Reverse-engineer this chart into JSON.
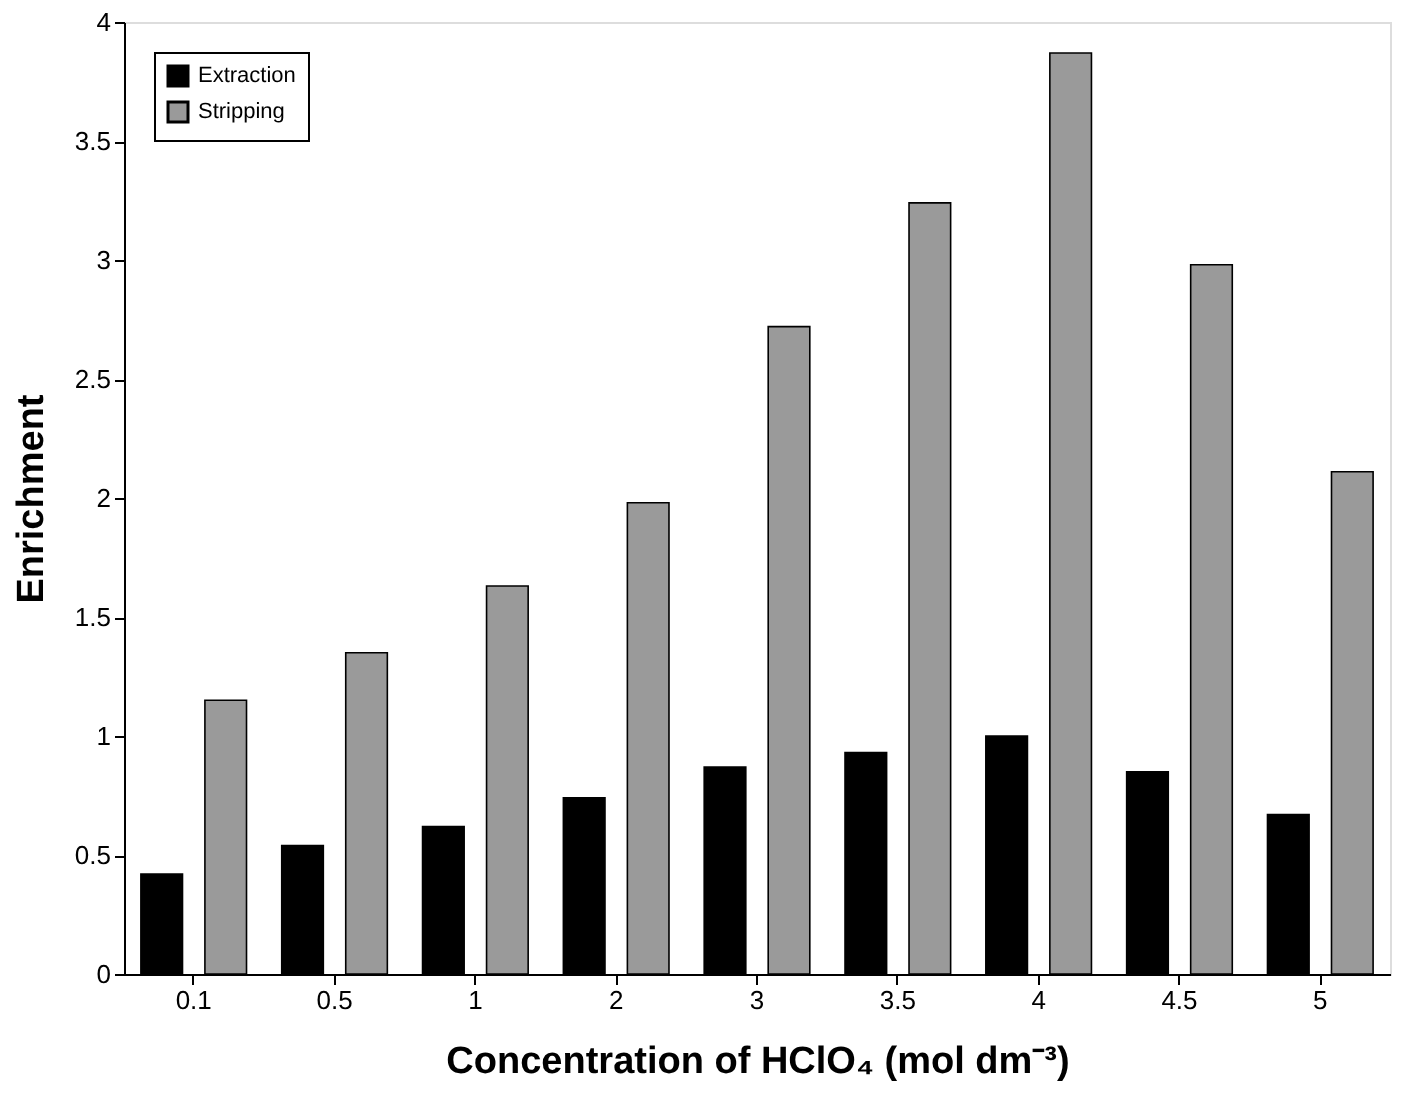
{
  "chart_data": {
    "type": "bar",
    "xlabel": "Concentration of HClO₄ (mol dm⁻³)",
    "ylabel": "Enrichment",
    "categories": [
      "0.1",
      "0.5",
      "1",
      "2",
      "3",
      "3.5",
      "4",
      "4.5",
      "5"
    ],
    "series": [
      {
        "name": "Extraction",
        "color": "#000000",
        "values": [
          0.42,
          0.54,
          0.62,
          0.74,
          0.87,
          0.93,
          1.0,
          0.85,
          0.67
        ]
      },
      {
        "name": "Stripping",
        "color": "#9a9a9a",
        "values": [
          1.15,
          1.35,
          1.63,
          1.98,
          2.72,
          3.24,
          3.87,
          2.98,
          2.11
        ]
      }
    ],
    "ylim": [
      0,
      4
    ],
    "yticks": [
      0,
      0.5,
      1,
      1.5,
      2,
      2.5,
      3,
      3.5,
      4
    ],
    "grid": false,
    "legend": "top left"
  }
}
